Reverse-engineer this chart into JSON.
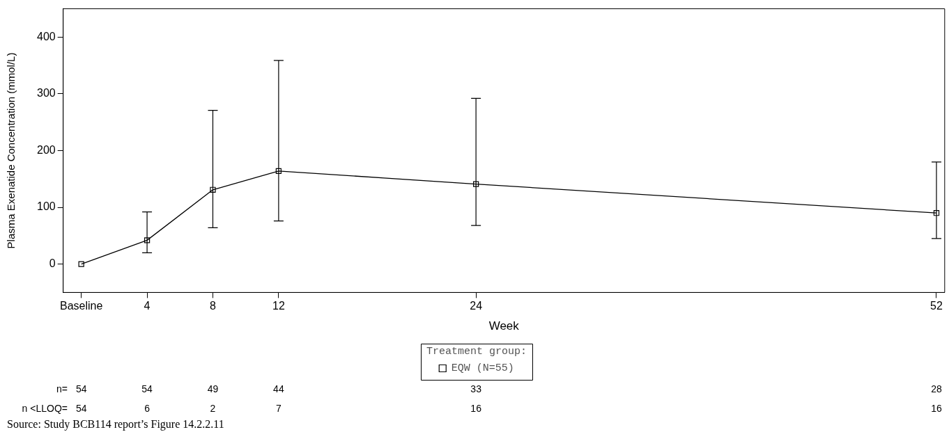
{
  "chart_data": {
    "type": "line",
    "xlabel": "Week",
    "ylabel": "Plasma Exenatide Concentration (mmol/L)",
    "legend_title": "Treatment group:",
    "x": [
      0,
      4,
      8,
      12,
      24,
      52
    ],
    "series": [
      {
        "name": "EQW (N=55)",
        "color": "#000000",
        "values": [
          0,
          42,
          131,
          164,
          141,
          90
        ],
        "errors": [
          null,
          [
            20,
            92
          ],
          [
            64,
            271
          ],
          [
            76,
            359
          ],
          [
            68,
            292
          ],
          [
            45,
            180
          ]
        ]
      }
    ],
    "xlim": [
      -1.1,
      52.5
    ],
    "xticks": [
      {
        "value": 0,
        "label": "Baseline"
      },
      4,
      8,
      12,
      24,
      52
    ],
    "ylim": [
      -50,
      450
    ],
    "yticks": [
      0,
      100,
      200,
      300,
      400
    ],
    "grid": false,
    "legend": "bottom",
    "marker": "square",
    "line_style": "solid",
    "annotations": [
      "n=",
      "54",
      "54",
      "49",
      "44",
      "33",
      "28",
      "n <LLOQ=",
      "54",
      "6",
      "2",
      "7",
      "16",
      "16",
      "Source: Study BCB114 report’s Figure 14.2.2.11"
    ]
  }
}
